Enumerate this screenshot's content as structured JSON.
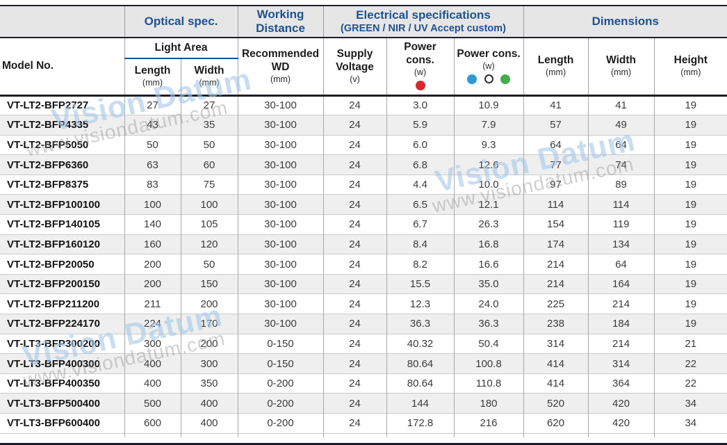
{
  "table": {
    "header": {
      "model_label": "Model No.",
      "groups": {
        "optical": "Optical spec.",
        "working_distance": "Working Distance",
        "electrical_title": "Electrical specifications",
        "electrical_subtitle": "(GREEN / NIR / UV Accept custom)",
        "dimensions": "Dimensions"
      },
      "sub": {
        "light_area": "Light Area",
        "length": "Length",
        "width": "Width",
        "height": "Height",
        "recommended_wd": "Recommended WD",
        "supply_voltage": "Supply Voltage",
        "power_cons": "Power cons.",
        "unit_mm": "(mm)",
        "unit_v": "(v)",
        "unit_w": "(w)"
      },
      "legend_icons": [
        "red-led-dot",
        "blue-led-dot",
        "white-led-dot",
        "green-led-dot"
      ]
    },
    "columns": [
      "model",
      "light_area_length_mm",
      "light_area_width_mm",
      "recommended_wd_mm",
      "supply_voltage_v",
      "power_cons_red_w",
      "power_cons_multi_w",
      "dim_length_mm",
      "dim_width_mm",
      "dim_height_mm"
    ],
    "rows": [
      [
        "VT-LT2-BFP2727",
        "27",
        "27",
        "30-100",
        "24",
        "3.0",
        "10.9",
        "41",
        "41",
        "19"
      ],
      [
        "VT-LT2-BFP4335",
        "43",
        "35",
        "30-100",
        "24",
        "5.9",
        "7.9",
        "57",
        "49",
        "19"
      ],
      [
        "VT-LT2-BFP5050",
        "50",
        "50",
        "30-100",
        "24",
        "6.0",
        "9.3",
        "64",
        "64",
        "19"
      ],
      [
        "VT-LT2-BFP6360",
        "63",
        "60",
        "30-100",
        "24",
        "6.8",
        "12.6",
        "77",
        "74",
        "19"
      ],
      [
        "VT-LT2-BFP8375",
        "83",
        "75",
        "30-100",
        "24",
        "4.4",
        "10.0",
        "97",
        "89",
        "19"
      ],
      [
        "VT-LT2-BFP100100",
        "100",
        "100",
        "30-100",
        "24",
        "6.5",
        "12.1",
        "114",
        "114",
        "19"
      ],
      [
        "VT-LT2-BFP140105",
        "140",
        "105",
        "30-100",
        "24",
        "6.7",
        "26.3",
        "154",
        "119",
        "19"
      ],
      [
        "VT-LT2-BFP160120",
        "160",
        "120",
        "30-100",
        "24",
        "8.4",
        "16.8",
        "174",
        "134",
        "19"
      ],
      [
        "VT-LT2-BFP20050",
        "200",
        "50",
        "30-100",
        "24",
        "8.2",
        "16.6",
        "214",
        "64",
        "19"
      ],
      [
        "VT-LT2-BFP200150",
        "200",
        "150",
        "30-100",
        "24",
        "15.5",
        "35.0",
        "214",
        "164",
        "19"
      ],
      [
        "VT-LT2-BFP211200",
        "211",
        "200",
        "30-100",
        "24",
        "12.3",
        "24.0",
        "225",
        "214",
        "19"
      ],
      [
        "VT-LT2-BFP224170",
        "224",
        "170",
        "30-100",
        "24",
        "36.3",
        "36.3",
        "238",
        "184",
        "19"
      ],
      [
        "VT-LT3-BFP300200",
        "300",
        "200",
        "0-150",
        "24",
        "40.32",
        "50.4",
        "314",
        "214",
        "21"
      ],
      [
        "VT-LT3-BFP400300",
        "400",
        "300",
        "0-150",
        "24",
        "80.64",
        "100.8",
        "414",
        "314",
        "22"
      ],
      [
        "VT-LT3-BFP400350",
        "400",
        "350",
        "0-200",
        "24",
        "80.64",
        "110.8",
        "414",
        "364",
        "22"
      ],
      [
        "VT-LT3-BFP500400",
        "500",
        "400",
        "0-200",
        "24",
        "144",
        "180",
        "520",
        "420",
        "34"
      ],
      [
        "VT-LT3-BFP600400",
        "600",
        "400",
        "0-200",
        "24",
        "172.8",
        "216",
        "620",
        "420",
        "34"
      ]
    ]
  },
  "watermark": {
    "title": "Vision Datum",
    "url": "www.visiondatum.com"
  },
  "colors": {
    "header_text_blue": "#1d5291",
    "header_bg": "#e6e6e6",
    "dark_line": "#1c1d27",
    "light_area_underline": "#1d4f80",
    "row_alt_bg": "#efefef",
    "red_dot": "#d7282f",
    "blue_dot": "#2d9bd5",
    "white_dot": "#ffffff",
    "green_dot": "#44ad4b"
  }
}
